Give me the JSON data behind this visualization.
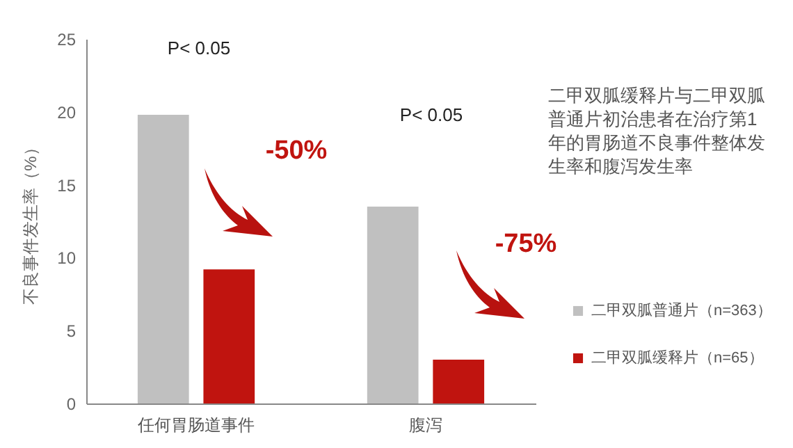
{
  "chart_data": {
    "type": "bar",
    "title": "二甲双胍缓释片与二甲双胍普通片初治患者在治疗第1年的胃肠道不良事件整体发生率和腹泻发生率",
    "ylabel": "不良事件发生率（%）",
    "categories": [
      "任何胃肠道事件",
      "腹泻"
    ],
    "series": [
      {
        "name": "二甲双胍普通片（n=363）",
        "color": "#c0c0c0",
        "values": [
          19.8,
          13.5
        ]
      },
      {
        "name": "二甲双胍缓释片（n=65）",
        "color": "#c0140f",
        "values": [
          9.2,
          3.0
        ]
      }
    ],
    "ylim": [
      0,
      25
    ],
    "yticks": [
      0,
      5,
      10,
      15,
      20,
      25
    ],
    "grid": false,
    "legend": "bottom right",
    "annotations": [
      "P< 0.05",
      "-50%",
      "P< 0.05",
      "-75%"
    ]
  }
}
